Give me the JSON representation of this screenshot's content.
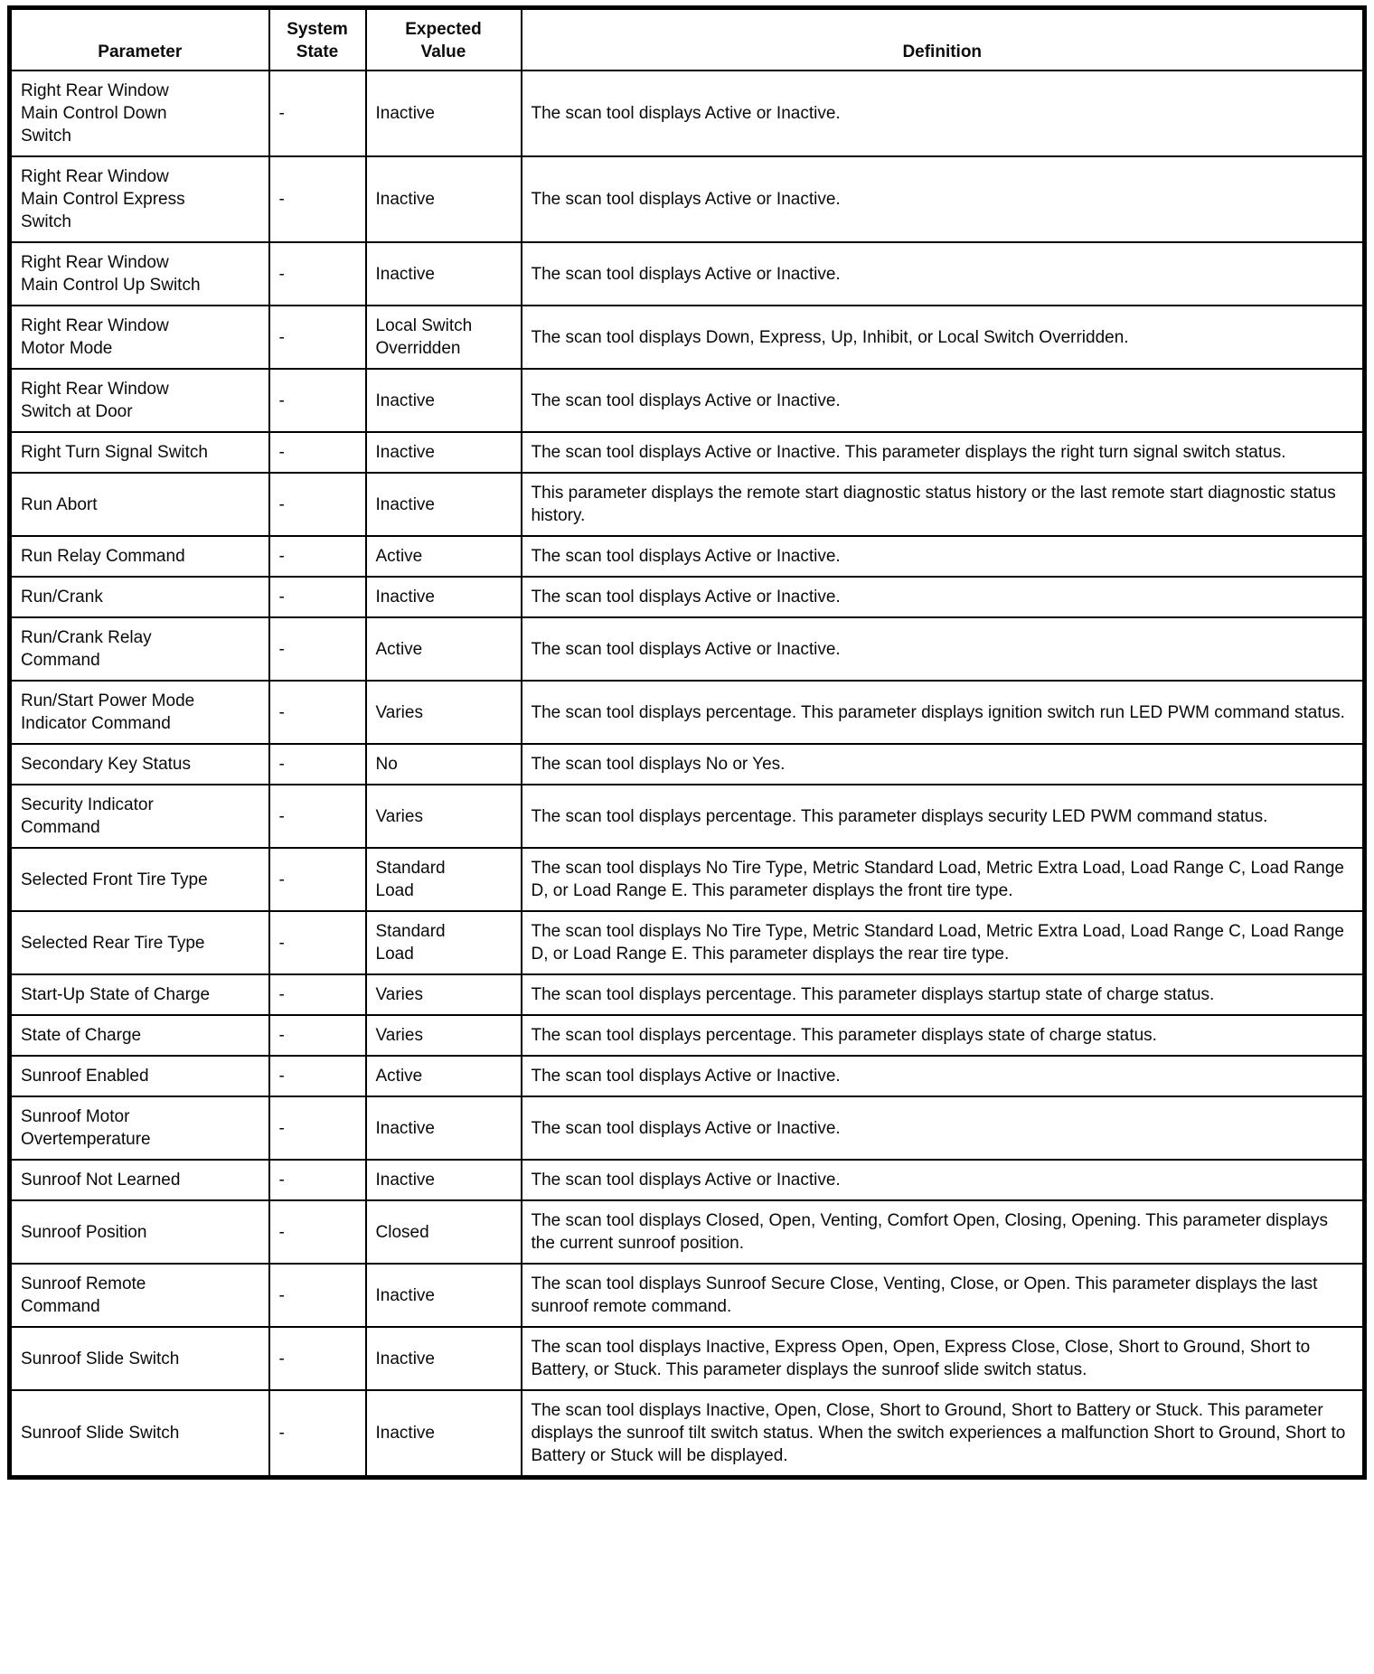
{
  "table": {
    "columns": [
      "Parameter",
      "System\nState",
      "Expected\nValue",
      "Definition"
    ],
    "rows": [
      {
        "parameter": "Right Rear Window\nMain Control Down\nSwitch",
        "system_state": "-",
        "expected_value": "Inactive",
        "definition": "The scan tool displays Active or Inactive."
      },
      {
        "parameter": "Right Rear Window\nMain Control Express\nSwitch",
        "system_state": "-",
        "expected_value": "Inactive",
        "definition": "The scan tool displays Active or Inactive."
      },
      {
        "parameter": "Right Rear Window\nMain Control Up Switch",
        "system_state": "-",
        "expected_value": "Inactive",
        "definition": "The scan tool displays Active or Inactive."
      },
      {
        "parameter": "Right Rear Window\nMotor Mode",
        "system_state": "-",
        "expected_value": "Local Switch\nOverridden",
        "definition": "The scan tool displays Down, Express, Up, Inhibit, or Local Switch Overridden."
      },
      {
        "parameter": "Right Rear Window\nSwitch at Door",
        "system_state": "-",
        "expected_value": "Inactive",
        "definition": "The scan tool displays Active or Inactive."
      },
      {
        "parameter": "Right Turn Signal Switch",
        "system_state": "-",
        "expected_value": "Inactive",
        "definition": "The scan tool displays Active or Inactive. This parameter displays the right turn signal switch status."
      },
      {
        "parameter": "Run Abort",
        "system_state": "-",
        "expected_value": "Inactive",
        "definition": "This parameter displays the remote start diagnostic status history or the last remote start diagnostic status history."
      },
      {
        "parameter": "Run Relay Command",
        "system_state": "-",
        "expected_value": "Active",
        "definition": "The scan tool displays Active or Inactive."
      },
      {
        "parameter": "Run/Crank",
        "system_state": "-",
        "expected_value": "Inactive",
        "definition": "The scan tool displays Active or Inactive."
      },
      {
        "parameter": "Run/Crank Relay\nCommand",
        "system_state": "-",
        "expected_value": "Active",
        "definition": "The scan tool displays Active or Inactive."
      },
      {
        "parameter": "Run/Start Power Mode\nIndicator Command",
        "system_state": "-",
        "expected_value": "Varies",
        "definition": "The scan tool displays percentage. This parameter displays ignition switch run LED PWM command status."
      },
      {
        "parameter": "Secondary Key Status",
        "system_state": "-",
        "expected_value": "No",
        "definition": "The scan tool displays No or Yes."
      },
      {
        "parameter": "Security Indicator\nCommand",
        "system_state": "-",
        "expected_value": "Varies",
        "definition": "The scan tool displays percentage. This parameter displays security LED PWM command status."
      },
      {
        "parameter": "Selected Front Tire Type",
        "system_state": "-",
        "expected_value": "Standard\nLoad",
        "definition": "The scan tool displays No Tire Type, Metric Standard Load, Metric Extra Load, Load Range C, Load Range D, or Load Range E. This parameter displays the front tire type."
      },
      {
        "parameter": "Selected Rear Tire Type",
        "system_state": "-",
        "expected_value": "Standard\nLoad",
        "definition": "The scan tool displays No Tire Type, Metric Standard Load, Metric Extra Load, Load Range C, Load Range D, or Load Range E. This parameter displays the rear tire type."
      },
      {
        "parameter": "Start-Up State of Charge",
        "system_state": "-",
        "expected_value": "Varies",
        "definition": "The scan tool displays percentage. This parameter displays startup state of charge status."
      },
      {
        "parameter": "State of Charge",
        "system_state": "-",
        "expected_value": "Varies",
        "definition": "The scan tool displays percentage. This parameter displays state of charge status."
      },
      {
        "parameter": "Sunroof Enabled",
        "system_state": "-",
        "expected_value": "Active",
        "definition": "The scan tool displays Active or Inactive."
      },
      {
        "parameter": "Sunroof Motor\nOvertemperature",
        "system_state": "-",
        "expected_value": "Inactive",
        "definition": "The scan tool displays Active or Inactive."
      },
      {
        "parameter": "Sunroof Not Learned",
        "system_state": "-",
        "expected_value": "Inactive",
        "definition": "The scan tool displays Active or Inactive."
      },
      {
        "parameter": "Sunroof Position",
        "system_state": "-",
        "expected_value": "Closed",
        "definition": "The scan tool displays Closed, Open, Venting, Comfort Open, Closing, Opening. This parameter displays the current sunroof position."
      },
      {
        "parameter": "Sunroof Remote\nCommand",
        "system_state": "-",
        "expected_value": "Inactive",
        "definition": "The scan tool displays Sunroof Secure Close, Venting, Close, or Open. This parameter displays the last sunroof remote command."
      },
      {
        "parameter": "Sunroof Slide Switch",
        "system_state": "-",
        "expected_value": "Inactive",
        "definition": "The scan tool displays Inactive, Express Open, Open, Express Close, Close, Short to Ground, Short to Battery, or Stuck. This parameter displays the sunroof slide switch status."
      },
      {
        "parameter": "Sunroof Slide Switch",
        "system_state": "-",
        "expected_value": "Inactive",
        "definition": "The scan tool displays Inactive, Open, Close, Short to Ground, Short to Battery or Stuck. This parameter displays the sunroof tilt switch status. When the switch experiences a malfunction Short to Ground, Short to Battery or Stuck will be displayed."
      }
    ]
  }
}
